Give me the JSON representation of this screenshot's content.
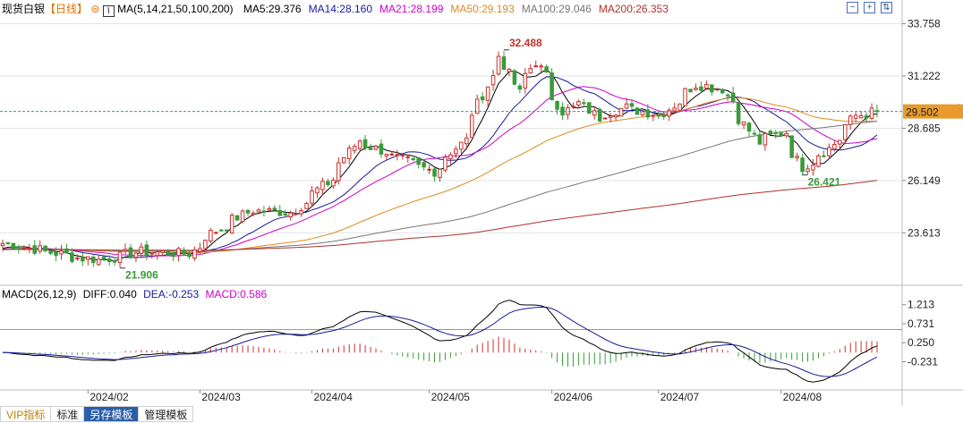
{
  "header": {
    "name": "现货白银",
    "period": "【日线】",
    "ma_label": "MA(5,14,21,50,100,200)",
    "ma_values": [
      {
        "text": "MA5:29.376",
        "color": "#000000"
      },
      {
        "text": "MA14:28.160",
        "color": "#1a1a99"
      },
      {
        "text": "MA21:28.199",
        "color": "#cc00cc"
      },
      {
        "text": "MA50:29.193",
        "color": "#e08a1e"
      },
      {
        "text": "MA100:29.046",
        "color": "#777777"
      },
      {
        "text": "MA200:26.353",
        "color": "#b0302a"
      }
    ]
  },
  "macd_header": {
    "label": "MACD(26,12,9)",
    "diff": "DIFF:0.040",
    "dea": "DEA:-0.253",
    "macd": "MACD:0.586"
  },
  "window_buttons": [
    "minus-icon",
    "plus-icon",
    "collapse-icon"
  ],
  "tabs": [
    "VIP指标",
    "标准",
    "另存模板",
    "管理模板"
  ],
  "colors": {
    "up": "#c8302c",
    "down": "#3a9a3a",
    "grid": "#e3e3e3",
    "price_line": "#2a9d9d",
    "price_box": "#e89a2a"
  },
  "chart_data": [
    {
      "type": "candlestick",
      "ylim": [
        21.2,
        34.3
      ],
      "y_ticks": [
        33.758,
        31.222,
        28.685,
        26.149,
        23.613
      ],
      "y_tick_labels": [
        "33.758",
        "31.222",
        "28.685",
        "26.149",
        "23.613"
      ],
      "x_month_labels": [
        "2024/02",
        "2024/03",
        "2024/04",
        "2024/05",
        "2024/06",
        "2024/07",
        "2024/08"
      ],
      "current_price": 29.502,
      "current_price_label": "29.502",
      "annotations": [
        {
          "text": "32.488",
          "value": 32.488,
          "kind": "high"
        },
        {
          "text": "21.906",
          "value": 21.906,
          "kind": "low"
        },
        {
          "text": "26.421",
          "value": 26.421,
          "kind": "low"
        }
      ],
      "close_anchors": [
        [
          "2024-01-10",
          23.1
        ],
        [
          "2024-01-22",
          22.7
        ],
        [
          "2024-01-30",
          22.4
        ],
        [
          "2024-02-05",
          22.3
        ],
        [
          "2024-02-15",
          22.7
        ],
        [
          "2024-02-28",
          22.6
        ],
        [
          "2024-03-05",
          23.6
        ],
        [
          "2024-03-15",
          24.7
        ],
        [
          "2024-03-26",
          24.6
        ],
        [
          "2024-04-05",
          26.2
        ],
        [
          "2024-04-12",
          28.1
        ],
        [
          "2024-04-22",
          27.3
        ],
        [
          "2024-05-02",
          26.6
        ],
        [
          "2024-05-10",
          28.1
        ],
        [
          "2024-05-17",
          31.2
        ],
        [
          "2024-05-20",
          32.2
        ],
        [
          "2024-05-24",
          30.4
        ],
        [
          "2024-05-29",
          31.9
        ],
        [
          "2024-06-05",
          29.5
        ],
        [
          "2024-06-10",
          29.9
        ],
        [
          "2024-06-14",
          29.2
        ],
        [
          "2024-06-21",
          29.7
        ],
        [
          "2024-07-01",
          29.3
        ],
        [
          "2024-07-10",
          30.8
        ],
        [
          "2024-07-17",
          30.6
        ],
        [
          "2024-07-26",
          28.0
        ],
        [
          "2024-08-02",
          28.5
        ],
        [
          "2024-08-07",
          26.8
        ],
        [
          "2024-08-14",
          27.7
        ],
        [
          "2024-08-21",
          29.3
        ],
        [
          "2024-08-27",
          29.5
        ]
      ],
      "ma_series": [
        {
          "name": "MA5",
          "period": 5,
          "color": "#000000"
        },
        {
          "name": "MA14",
          "period": 14,
          "color": "#1a1a99"
        },
        {
          "name": "MA21",
          "period": 21,
          "color": "#cc00cc"
        },
        {
          "name": "MA50",
          "period": 50,
          "color": "#e08a1e"
        },
        {
          "name": "MA100",
          "period": 100,
          "color": "#777777"
        },
        {
          "name": "MA200",
          "period": 200,
          "color": "#b0302a"
        }
      ]
    },
    {
      "type": "macd",
      "ylim": [
        -0.9,
        1.32
      ],
      "y_ticks": [
        1.213,
        0.731,
        0.25,
        -0.231
      ],
      "y_tick_labels": [
        "1.213",
        "0.731",
        "0.250",
        "-0.231"
      ],
      "params": [
        26,
        12,
        9
      ],
      "diff": 0.04,
      "dea": -0.253,
      "macd": 0.586
    }
  ]
}
